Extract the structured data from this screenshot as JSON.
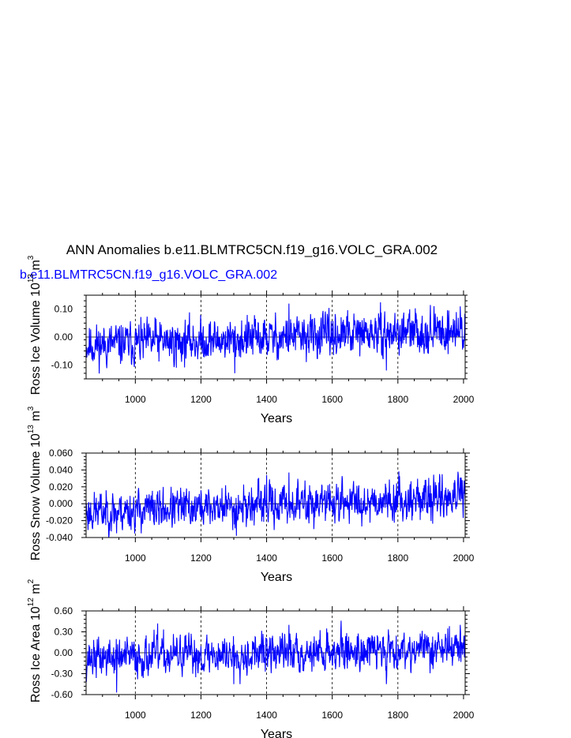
{
  "title": "ANN Anomalies b.e11.BLMTRC5CN.f19_g16.VOLC_GRA.002",
  "run_label": "b.e11.BLMTRC5CN.f19_g16.VOLC_GRA.002",
  "colors": {
    "series": "#0000ff",
    "run_label": "#0000ff",
    "axes": "#000000",
    "gridline": "#000000"
  },
  "chart_data": [
    {
      "type": "line",
      "name": "ross-ice-volume",
      "ylabel": {
        "base": "Ross Ice Volume 10",
        "exp": "13",
        "unit": " m",
        "unit_exp": "3"
      },
      "xlabel": "Years",
      "xlim": [
        850,
        2005
      ],
      "ylim": [
        -0.15,
        0.15
      ],
      "xticks": [
        1000,
        1200,
        1400,
        1600,
        1800,
        2000
      ],
      "xtick_labels": [
        "1000",
        "1200",
        "1400",
        "1600",
        "1800",
        "2000"
      ],
      "yticks": [
        -0.1,
        0.0,
        0.1
      ],
      "ytick_labels": [
        "-0.10",
        "0.00",
        "0.10"
      ],
      "vgrid": [
        1000,
        1200,
        1400,
        1600,
        1800
      ],
      "series": {
        "name": "b.e11.BLMTRC5CN.f19_g16.VOLC_GRA.002",
        "x_start": 850,
        "x_end": 2005,
        "amp": 0.035,
        "trend_start": -0.03,
        "trend_end": 0.025,
        "seed": 11,
        "spikes": [
          [
            1303,
            -0.13
          ],
          [
            1468,
            0.12
          ],
          [
            1765,
            -0.12
          ],
          [
            1990,
            0.11
          ],
          [
            1125,
            -0.11
          ],
          [
            1060,
            0.07
          ]
        ]
      }
    },
    {
      "type": "line",
      "name": "ross-snow-volume",
      "ylabel": {
        "base": "Ross Snow Volume 10",
        "exp": "13",
        "unit": " m",
        "unit_exp": "3"
      },
      "xlabel": "Years",
      "xlim": [
        850,
        2005
      ],
      "ylim": [
        -0.04,
        0.06
      ],
      "xticks": [
        1000,
        1200,
        1400,
        1600,
        1800,
        2000
      ],
      "xtick_labels": [
        "1000",
        "1200",
        "1400",
        "1600",
        "1800",
        "2000"
      ],
      "yticks": [
        -0.04,
        -0.02,
        0.0,
        0.02,
        0.04,
        0.06
      ],
      "ytick_labels": [
        "-0.040",
        "-0.020",
        "0.000",
        "0.020",
        "0.040",
        "0.060"
      ],
      "vgrid": [
        1000,
        1200,
        1400,
        1600,
        1800
      ],
      "series": {
        "name": "b.e11.BLMTRC5CN.f19_g16.VOLC_GRA.002",
        "x_start": 850,
        "x_end": 2005,
        "amp": 0.011,
        "trend_start": -0.01,
        "trend_end": 0.008,
        "seed": 23,
        "spikes": [
          [
            1308,
            -0.038
          ],
          [
            1468,
            0.037
          ],
          [
            1400,
            0.034
          ],
          [
            1935,
            0.035
          ],
          [
            1990,
            0.031
          ],
          [
            943,
            -0.035
          ]
        ]
      }
    },
    {
      "type": "line",
      "name": "ross-ice-area",
      "ylabel": {
        "base": "Ross Ice Area 10",
        "exp": "12",
        "unit": " m",
        "unit_exp": "2"
      },
      "xlabel": "Years",
      "xlim": [
        850,
        2005
      ],
      "ylim": [
        -0.6,
        0.6
      ],
      "xticks": [
        1000,
        1200,
        1400,
        1600,
        1800,
        2000
      ],
      "xtick_labels": [
        "1000",
        "1200",
        "1400",
        "1600",
        "1800",
        "2000"
      ],
      "yticks": [
        -0.6,
        -0.3,
        0.0,
        0.3,
        0.6
      ],
      "ytick_labels": [
        "-0.60",
        "-0.30",
        "0.00",
        "0.30",
        "0.60"
      ],
      "vgrid": [
        1000,
        1200,
        1400,
        1600,
        1800
      ],
      "series": {
        "name": "b.e11.BLMTRC5CN.f19_g16.VOLC_GRA.002",
        "x_start": 850,
        "x_end": 2005,
        "amp": 0.13,
        "trend_start": -0.08,
        "trend_end": 0.08,
        "seed": 37,
        "spikes": [
          [
            943,
            -0.57
          ],
          [
            1068,
            0.42
          ],
          [
            1300,
            -0.45
          ],
          [
            1468,
            0.4
          ],
          [
            1765,
            -0.45
          ],
          [
            1990,
            0.4
          ]
        ]
      }
    }
  ]
}
